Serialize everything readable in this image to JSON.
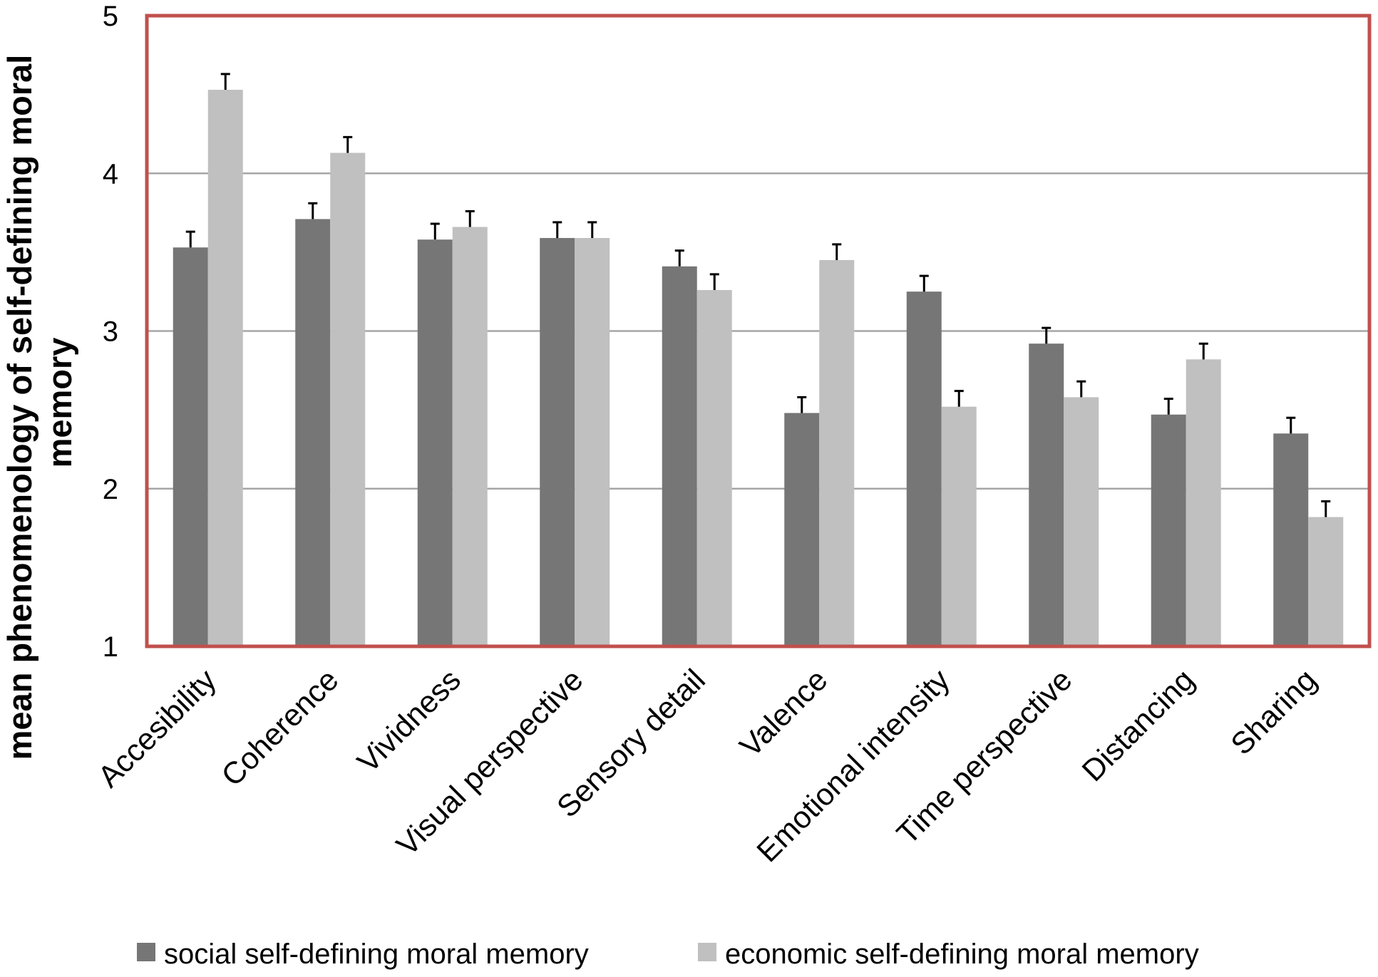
{
  "chart_data": {
    "type": "bar",
    "title": "",
    "xlabel": "",
    "ylabel": "mean phenomenology of self-defining moral memory",
    "ylabel_lines": [
      "mean phenomenology of self-defining moral",
      "memory"
    ],
    "ylim": [
      1,
      5
    ],
    "yticks": [
      "1",
      "2",
      "3",
      "4",
      "5"
    ],
    "grid": true,
    "legend_position": "bottom",
    "categories": [
      "Accesibility",
      "Coherence",
      "Vividness",
      "Visual perspective",
      "Sensory detail",
      "Valence",
      "Emotional intensity",
      "Time perspective",
      "Distancing",
      "Sharing"
    ],
    "series": [
      {
        "name": "social self-defining moral memory",
        "color": "#767676",
        "values": [
          3.53,
          3.71,
          3.58,
          3.59,
          3.41,
          2.48,
          3.25,
          2.92,
          2.47,
          2.35
        ],
        "errors": [
          0.1,
          0.1,
          0.1,
          0.1,
          0.1,
          0.1,
          0.1,
          0.1,
          0.1,
          0.1
        ]
      },
      {
        "name": "economic self-defining moral memory",
        "color": "#c0c0c0",
        "values": [
          4.53,
          4.13,
          3.66,
          3.59,
          3.26,
          3.45,
          2.52,
          2.58,
          2.82,
          1.82
        ],
        "errors": [
          0.1,
          0.1,
          0.1,
          0.1,
          0.1,
          0.1,
          0.1,
          0.1,
          0.1,
          0.1
        ]
      }
    ],
    "colors": {
      "frame": "#c0504d",
      "grid": "#a6a6a6"
    }
  }
}
